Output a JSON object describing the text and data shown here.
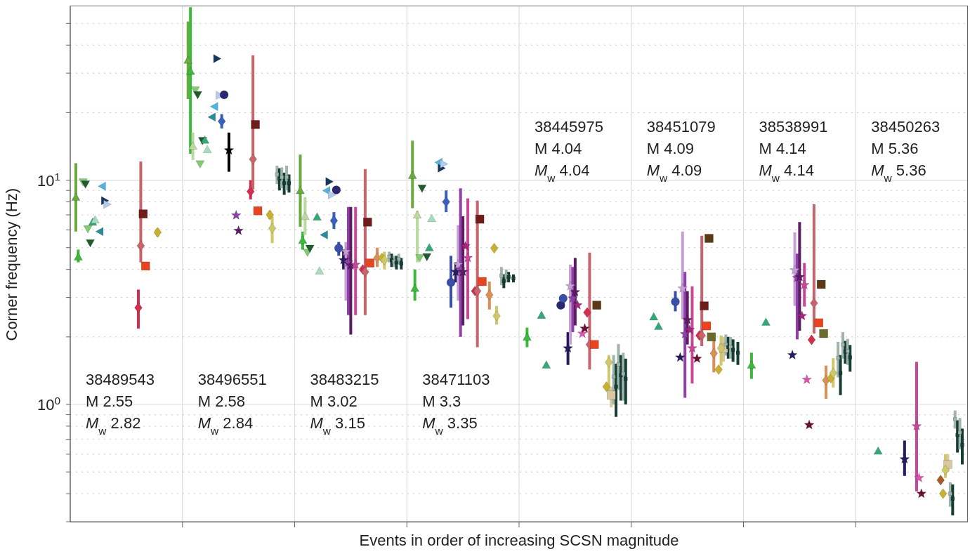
{
  "chart_data": {
    "type": "scatter",
    "xlabel": "Events in order of increasing SCSN magnitude",
    "ylabel": "Corner frequency (Hz)",
    "log": "y",
    "grid": true,
    "legend": false,
    "tick_labels": "y",
    "categories": [
      null,
      null,
      null,
      null,
      null,
      null,
      null,
      null
    ],
    "ylim": [
      0.3,
      60
    ],
    "yticks": [
      {
        "value": 0.3,
        "label": null
      },
      {
        "value": 0.4,
        "label": null
      },
      {
        "value": 0.5,
        "label": null
      },
      {
        "value": 0.6,
        "label": null
      },
      {
        "value": 0.7,
        "label": null
      },
      {
        "value": 0.8,
        "label": null
      },
      {
        "value": 0.9,
        "label": null
      },
      {
        "value": 1,
        "label": "10$^{0}$"
      },
      {
        "value": 2,
        "label": null
      },
      {
        "value": 3,
        "label": null
      },
      {
        "value": 4,
        "label": null
      },
      {
        "value": 5,
        "label": null
      },
      {
        "value": 6,
        "label": null
      },
      {
        "value": 7,
        "label": null
      },
      {
        "value": 8,
        "label": null
      },
      {
        "value": 9,
        "label": null
      },
      {
        "value": 10,
        "label": "10$^{1}$"
      },
      {
        "value": 20,
        "label": null
      },
      {
        "value": 30,
        "label": null
      },
      {
        "value": 40,
        "label": null
      },
      {
        "value": 50,
        "label": null
      }
    ],
    "annotations": [
      "38489543\nM 2.55\nM$_{w}$ 2.82",
      "38496551\nM 2.58\nM$_{w}$ 2.84",
      "38483215\nM 3.02\nM$_{w}$ 3.15",
      "38471103\nM 3.3\nM$_{w}$ 3.35",
      "38445975\nM 4.04\nM$_{w}$ 4.04",
      "38451079\nM 4.09\nM$_{w}$ 4.09",
      "38538991\nM 4.14\nM$_{w}$ 4.14",
      "38450263\nM 5.36\nM$_{w}$ 5.36"
    ],
    "series": [
      {
        "color": "#6aaa40",
        "marker": "triangle-up",
        "values": [
          8.4,
          34.3,
          9.0,
          10.5,
          null,
          null,
          null,
          null
        ],
        "errors": [
          [
            5.9,
            11.9
          ],
          [
            23,
            51
          ],
          [
            6.2,
            13
          ],
          [
            7.5,
            15
          ],
          null,
          null,
          null,
          null
        ]
      },
      {
        "color": "#3cb83c",
        "marker": "triangle-up",
        "values": [
          4.55,
          30.6,
          5.4,
          3.3,
          2.0,
          null,
          1.5,
          null
        ],
        "errors": [
          [
            4.3,
            4.9
          ],
          [
            13.1,
            59
          ],
          [
            4.9,
            5.9
          ],
          [
            2.9,
            4.0
          ],
          [
            1.8,
            2.2
          ],
          null,
          [
            1.3,
            1.7
          ],
          null
        ]
      },
      {
        "color": "#bcd8a0",
        "marker": "triangle-up",
        "values": [
          null,
          14.2,
          6.9,
          7.0,
          null,
          null,
          null,
          null
        ],
        "errors": [
          null,
          [
            12.3,
            16.3
          ],
          [
            5.7,
            8.4
          ],
          [
            4.3,
            7.3
          ],
          null,
          null,
          null,
          null
        ]
      },
      {
        "color": "#80cc70",
        "marker": "triangle-down",
        "values": [
          9.8,
          25.2,
          4.76,
          4.5,
          null,
          null,
          null,
          null
        ]
      },
      {
        "color": "#1e5e2e",
        "marker": "triangle-down",
        "values": [
          9.6,
          24,
          4.96,
          9.2,
          null,
          null,
          null,
          null
        ]
      },
      {
        "color": "#80cc70",
        "marker": "triangle-down",
        "values": [
          6.06,
          11.8,
          null,
          null,
          null,
          null,
          null,
          null
        ]
      },
      {
        "color": "#1e5e2e",
        "marker": "triangle-down",
        "values": [
          5.25,
          15,
          null,
          4.55,
          null,
          null,
          null,
          null
        ]
      },
      {
        "color": "#34a878",
        "marker": "triangle-up",
        "values": [
          6.5,
          15.1,
          6.85,
          5.0,
          2.5,
          2.46,
          2.33,
          0.62
        ]
      },
      {
        "color": "#a8dcc0",
        "marker": "triangle-up",
        "values": [
          6.66,
          13.7,
          3.94,
          6.75,
          null,
          null,
          null,
          null
        ]
      },
      {
        "color": "#34a878",
        "marker": "triangle-up",
        "values": [
          null,
          null,
          null,
          null,
          1.5,
          2.23,
          null,
          null
        ]
      },
      {
        "color": "#2a8c9c",
        "marker": "triangle-left",
        "values": [
          5.9,
          19.1,
          5.7,
          null,
          null,
          null,
          null,
          null
        ]
      },
      {
        "color": "#50b4e0",
        "marker": "triangle-left",
        "values": [
          9.4,
          21.3,
          8.98,
          12,
          null,
          null,
          null,
          null
        ]
      },
      {
        "color": "#16385e",
        "marker": "triangle-right",
        "values": [
          8.1,
          34.8,
          9.85,
          11.3,
          null,
          null,
          null,
          null
        ]
      },
      {
        "color": "#b4ccec",
        "marker": "triangle-right",
        "values": [
          7.8,
          23.9,
          8.6,
          11.8,
          null,
          null,
          null,
          null
        ]
      },
      {
        "color": "#3a62bc",
        "marker": "diamond",
        "values": [
          null,
          18.3,
          6.6,
          8.0,
          null,
          null,
          null,
          null
        ],
        "errors": [
          null,
          [
            17,
            19.7
          ],
          [
            6.06,
            7.2
          ],
          [
            7.2,
            9.0
          ],
          null,
          null,
          null,
          null
        ]
      },
      {
        "color": "#2a2870",
        "marker": "circle",
        "values": [
          null,
          24,
          9.04,
          null,
          2.77,
          null,
          null,
          null
        ]
      },
      {
        "color": "#3a50a8",
        "marker": "circle",
        "values": [
          null,
          null,
          4.97,
          3.5,
          2.97,
          2.87,
          null,
          null
        ],
        "errors": [
          null,
          null,
          [
            4.6,
            5.3
          ],
          [
            2.7,
            4.6
          ],
          [
            2.7,
            3.1
          ],
          [
            2.6,
            3.2
          ],
          null,
          null
        ]
      },
      {
        "color": "#000000",
        "marker": "star",
        "values": [
          null,
          13.6,
          null,
          null,
          null,
          null,
          null,
          null
        ],
        "errors": [
          null,
          [
            10.9,
            16.3
          ],
          null,
          null,
          null,
          null,
          null,
          null
        ]
      },
      {
        "color": "#2a1a5e",
        "marker": "star",
        "values": [
          null,
          null,
          4.4,
          3.9,
          1.78,
          1.62,
          1.66,
          0.57
        ],
        "errors": [
          null,
          null,
          [
            4.0,
            4.9
          ],
          [
            3.5,
            4.3
          ],
          [
            1.5,
            2.1
          ],
          null,
          null,
          [
            0.48,
            0.69
          ]
        ]
      },
      {
        "color": "#c4a0d4",
        "marker": "star",
        "values": [
          null,
          null,
          4.8,
          4.2,
          3.37,
          3.29,
          3.97,
          null
        ],
        "errors": [
          null,
          null,
          [
            2.9,
            5.3
          ],
          [
            2.9,
            6.3
          ],
          [
            1.85,
            4.2
          ],
          [
            2.4,
            5.9
          ],
          [
            2.75,
            5.85
          ],
          null
        ]
      },
      {
        "color": "#9040a8",
        "marker": "star",
        "values": [
          null,
          6.97,
          4.3,
          4.0,
          2.97,
          2.06,
          3.67,
          null
        ],
        "errors": [
          null,
          null,
          [
            2.5,
            7.6
          ],
          [
            2.0,
            9.2
          ],
          [
            2.1,
            4.1
          ],
          [
            1.07,
            3.9
          ],
          [
            1.95,
            4.7
          ],
          null
        ]
      },
      {
        "color": "#5c1c64",
        "marker": "star",
        "values": [
          null,
          5.95,
          4.17,
          3.9,
          3.17,
          2.38,
          3.7,
          null
        ],
        "errors": [
          null,
          null,
          [
            2.05,
            7.6
          ],
          [
            2.25,
            6.9
          ],
          [
            2.25,
            4.5
          ],
          [
            1.85,
            3.2
          ],
          [
            2.13,
            6.5
          ],
          null
        ]
      },
      {
        "color": "#a0287c",
        "marker": "star",
        "values": [
          null,
          null,
          null,
          5.07,
          2.77,
          2.15,
          2.48,
          null
        ]
      },
      {
        "color": "#c84898",
        "marker": "star",
        "values": [
          null,
          null,
          4.2,
          4.5,
          null,
          1.78,
          3.41,
          0.8
        ],
        "errors": [
          null,
          null,
          [
            2.5,
            7.6
          ],
          [
            2.4,
            8.3
          ],
          null,
          [
            1.24,
            3.36
          ],
          [
            2.73,
            4.27
          ],
          [
            0.41,
            1.55
          ]
        ]
      },
      {
        "color": "#d858b0",
        "marker": "star",
        "values": [
          null,
          null,
          null,
          null,
          2.07,
          null,
          1.29,
          0.47
        ]
      },
      {
        "color": "#6a0e30",
        "marker": "star",
        "values": [
          null,
          null,
          null,
          null,
          2.18,
          1.6,
          0.81,
          0.4
        ]
      },
      {
        "color": "#d0304e",
        "marker": "diamond",
        "values": [
          2.7,
          8.9,
          4.0,
          3.2,
          2.57,
          2.03,
          1.94,
          null
        ],
        "errors": [
          [
            2.18,
            3.25
          ],
          [
            8.2,
            10
          ],
          null,
          null,
          null,
          null,
          null,
          null
        ]
      },
      {
        "color": "#c8646e",
        "marker": "diamond",
        "values": [
          5.1,
          12.4,
          3.9,
          3.2,
          1.85,
          2.03,
          2.83,
          null
        ],
        "errors": [
          [
            4.3,
            12.1
          ],
          [
            9.1,
            36
          ],
          [
            2.5,
            11.2
          ],
          [
            1.8,
            8.1
          ],
          [
            1.43,
            4.75
          ],
          [
            1.82,
            5.65
          ],
          [
            2.07,
            7.8
          ],
          null
        ]
      },
      {
        "color": "#701c18",
        "marker": "square",
        "values": [
          7.07,
          17.7,
          6.5,
          6.7,
          null,
          2.75,
          null,
          null
        ]
      },
      {
        "color": "#e84420",
        "marker": "square",
        "values": [
          4.14,
          7.3,
          4.27,
          3.53,
          1.85,
          2.24,
          2.31,
          null
        ]
      },
      {
        "color": "#5a3a16",
        "marker": "square",
        "values": [
          null,
          null,
          null,
          null,
          2.77,
          5.5,
          3.43,
          null
        ]
      },
      {
        "color": "#6a6a2a",
        "marker": "square",
        "values": [
          null,
          null,
          null,
          null,
          null,
          2.0,
          2.07,
          null
        ]
      },
      {
        "color": "#d89058",
        "marker": "diamond",
        "values": [
          null,
          null,
          4.5,
          3.08,
          null,
          1.69,
          1.28,
          null
        ],
        "errors": [
          null,
          null,
          [
            4.1,
            5.0
          ],
          [
            2.65,
            3.53
          ],
          null,
          [
            1.39,
            2.0
          ],
          [
            1.06,
            1.49
          ],
          null
        ]
      },
      {
        "color": "#a85a28",
        "marker": "diamond",
        "values": [
          null,
          null,
          null,
          null,
          null,
          null,
          null,
          0.46
        ]
      },
      {
        "color": "#c8b030",
        "marker": "diamond",
        "values": [
          5.85,
          7.0,
          4.5,
          4.97,
          1.2,
          1.43,
          1.31,
          0.4
        ],
        "errors": [
          [
            5.6,
            6.1
          ],
          [
            6.7,
            7.3
          ],
          null,
          null,
          null,
          null,
          null,
          null
        ]
      },
      {
        "color": "#cec868",
        "marker": "diamond",
        "values": [
          null,
          6.1,
          4.4,
          2.48,
          1.54,
          1.78,
          1.38,
          0.51
        ],
        "errors": [
          null,
          [
            5.24,
            6.9
          ],
          [
            4.0,
            4.8
          ],
          [
            2.27,
            2.75
          ],
          [
            1.11,
            1.66
          ],
          [
            1.49,
            2.03
          ],
          [
            1.19,
            1.61
          ],
          [
            0.47,
            0.6
          ]
        ]
      },
      {
        "color": "#d8c8a0",
        "marker": "square",
        "values": [
          null,
          null,
          null,
          null,
          1.1,
          1.78,
          null,
          0.54
        ],
        "errors": [
          null,
          null,
          null,
          null,
          [
            0.97,
            1.2
          ],
          [
            1.55,
            2.0
          ],
          null,
          [
            0.5,
            0.6
          ]
        ]
      },
      {
        "color": "#9eb4ac",
        "marker": "square",
        "values": [
          null,
          10.6,
          4.55,
          3.75,
          1.33,
          1.85,
          1.61,
          0.4
        ],
        "errors": [
          null,
          [
            9.6,
            11.6
          ],
          [
            4.3,
            4.8
          ],
          [
            3.4,
            4.1
          ],
          [
            1.0,
            1.66
          ],
          [
            1.65,
            2.05
          ],
          [
            1.32,
            1.9
          ],
          [
            0.35,
            0.45
          ]
        ]
      },
      {
        "color": "#163e32",
        "marker": "square",
        "values": [
          null,
          10.15,
          4.4,
          3.55,
          1.2,
          1.8,
          1.38,
          0.38
        ],
        "errors": [
          null,
          [
            9.0,
            11.3
          ],
          [
            4.1,
            4.7
          ],
          [
            3.3,
            3.8
          ],
          [
            0.88,
            1.52
          ],
          [
            1.6,
            2.0
          ],
          [
            1.1,
            1.66
          ],
          [
            0.32,
            0.44
          ]
        ]
      },
      {
        "color": "#9eb4ac",
        "marker": "square",
        "values": [
          null,
          10.3,
          4.35,
          3.75,
          1.51,
          1.8,
          1.85,
          0.86
        ],
        "errors": [
          null,
          [
            9.2,
            11.4
          ],
          [
            4.1,
            4.6
          ],
          [
            3.5,
            4.0
          ],
          [
            1.16,
            1.86
          ],
          [
            1.6,
            2.0
          ],
          [
            1.6,
            2.1
          ],
          [
            0.78,
            0.94
          ]
        ]
      },
      {
        "color": "#163e32",
        "marker": "square",
        "values": [
          null,
          9.7,
          4.3,
          3.7,
          1.35,
          1.75,
          1.72,
          0.73
        ],
        "errors": [
          null,
          [
            8.6,
            10.8
          ],
          [
            4.0,
            4.6
          ],
          [
            3.5,
            3.9
          ],
          [
            1.04,
            1.66
          ],
          [
            1.55,
            1.95
          ],
          [
            1.52,
            1.92
          ],
          [
            0.61,
            0.85
          ]
        ]
      },
      {
        "color": "#9eb4ac",
        "marker": "square",
        "values": [
          null,
          10.3,
          4.45,
          null,
          1.37,
          null,
          1.73,
          0.75
        ],
        "errors": [
          null,
          [
            9.0,
            11.6
          ],
          [
            4.2,
            4.7
          ],
          null,
          [
            1.04,
            1.7
          ],
          null,
          [
            1.5,
            1.96
          ],
          [
            0.63,
            0.87
          ]
        ]
      },
      {
        "color": "#163e32",
        "marker": "square",
        "values": [
          null,
          9.7,
          4.25,
          3.65,
          1.3,
          1.7,
          1.62,
          0.66
        ],
        "errors": [
          null,
          [
            8.8,
            10.6
          ],
          [
            4.0,
            4.5
          ],
          [
            3.5,
            3.8
          ],
          [
            1.0,
            1.6
          ],
          [
            1.5,
            1.9
          ],
          [
            1.4,
            1.84
          ],
          [
            0.54,
            0.78
          ]
        ]
      }
    ]
  }
}
